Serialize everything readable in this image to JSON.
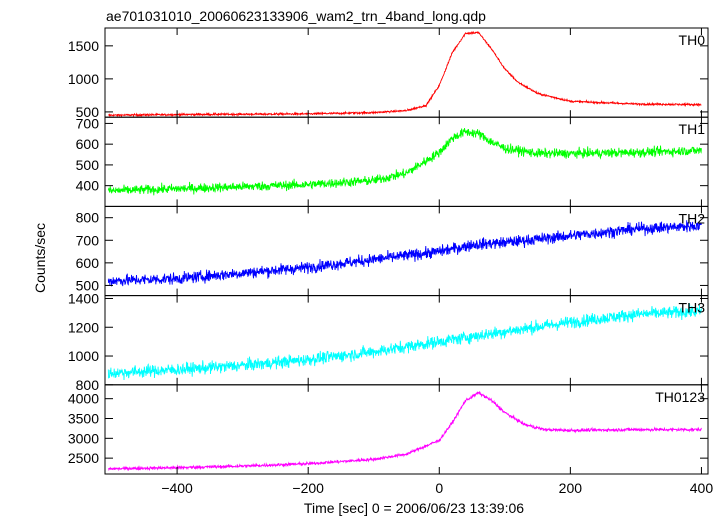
{
  "chart_data": {
    "type": "line",
    "title": "ae701031010_20060623133906_wam2_trn_4band_long.qdp",
    "xlabel": "Time [sec] 0 = 2006/06/23 13:39:06",
    "ylabel": "Counts/sec",
    "xlim": [
      -510,
      410
    ],
    "x_ticks": [
      -400,
      -200,
      0,
      200,
      400
    ],
    "x_tick_labels": [
      "−400",
      "−200",
      "0",
      "200",
      "400"
    ],
    "x_step": 0.5,
    "panels": [
      {
        "name": "TH0",
        "color": "#ff0000",
        "ylim": [
          420,
          1770
        ],
        "y_ticks": [
          500,
          1000,
          1500
        ],
        "y_tick_labels": [
          "500",
          "1000",
          "1500"
        ],
        "noise": 14,
        "x": [
          -505,
          -400,
          -300,
          -200,
          -100,
          -50,
          -20,
          0,
          20,
          40,
          60,
          80,
          100,
          120,
          150,
          200,
          300,
          400
        ],
        "y": [
          450,
          460,
          465,
          470,
          490,
          520,
          600,
          900,
          1400,
          1690,
          1700,
          1450,
          1150,
          950,
          780,
          660,
          620,
          610
        ]
      },
      {
        "name": "TH1",
        "color": "#00ff00",
        "ylim": [
          300,
          730
        ],
        "y_ticks": [
          400,
          500,
          600,
          700
        ],
        "y_tick_labels": [
          "400",
          "500",
          "600",
          "700"
        ],
        "noise": 22,
        "x": [
          -505,
          -400,
          -300,
          -200,
          -100,
          -50,
          0,
          20,
          40,
          60,
          80,
          100,
          150,
          200,
          300,
          400
        ],
        "y": [
          375,
          385,
          395,
          405,
          425,
          460,
          560,
          630,
          660,
          650,
          610,
          580,
          555,
          555,
          560,
          570
        ]
      },
      {
        "name": "TH2",
        "color": "#0000ff",
        "ylim": [
          455,
          850
        ],
        "y_ticks": [
          500,
          600,
          700,
          800
        ],
        "y_tick_labels": [
          "500",
          "600",
          "700",
          "800"
        ],
        "noise": 25,
        "x": [
          -505,
          -400,
          -300,
          -200,
          -100,
          0,
          50,
          100,
          200,
          300,
          400
        ],
        "y": [
          520,
          530,
          555,
          580,
          615,
          650,
          680,
          690,
          720,
          750,
          765
        ]
      },
      {
        "name": "TH3",
        "color": "#00ffff",
        "ylim": [
          800,
          1420
        ],
        "y_ticks": [
          800,
          1000,
          1200,
          1400
        ],
        "y_tick_labels": [
          "800",
          "1000",
          "1200",
          "1400"
        ],
        "noise": 42,
        "x": [
          -505,
          -400,
          -300,
          -200,
          -100,
          0,
          100,
          200,
          300,
          400
        ],
        "y": [
          880,
          905,
          935,
          975,
          1030,
          1100,
          1170,
          1235,
          1290,
          1310
        ]
      },
      {
        "name": "TH0123",
        "color": "#ff00ff",
        "ylim": [
          2100,
          4350
        ],
        "y_ticks": [
          2500,
          3000,
          3500,
          4000
        ],
        "y_tick_labels": [
          "2500",
          "3000",
          "3500",
          "4000"
        ],
        "noise": 38,
        "x": [
          -505,
          -400,
          -300,
          -200,
          -100,
          -50,
          0,
          20,
          40,
          60,
          80,
          100,
          130,
          160,
          200,
          300,
          400
        ],
        "y": [
          2230,
          2260,
          2300,
          2360,
          2470,
          2600,
          2950,
          3400,
          3950,
          4150,
          3950,
          3650,
          3350,
          3220,
          3200,
          3220,
          3220
        ]
      }
    ]
  }
}
